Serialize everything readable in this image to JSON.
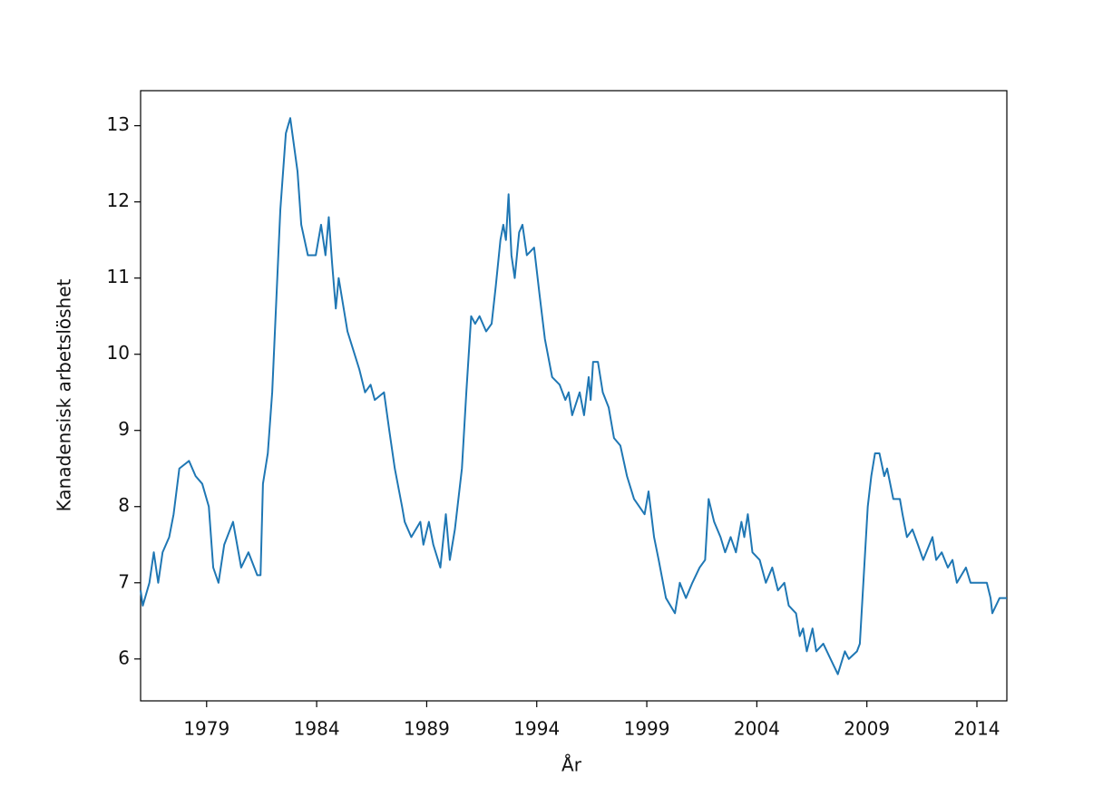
{
  "chart_data": {
    "type": "line",
    "x_label": "År",
    "y_label": "Kanadensisk arbetslöshet",
    "x": [
      1976.0,
      1976.1,
      1976.4,
      1976.6,
      1976.8,
      1977.0,
      1977.3,
      1977.5,
      1977.76,
      1978.2,
      1978.5,
      1978.8,
      1979.1,
      1979.3,
      1979.54,
      1979.8,
      1980.2,
      1980.57,
      1980.9,
      1981.3,
      1981.45,
      1981.56,
      1981.78,
      1981.98,
      1982.35,
      1982.6,
      1982.8,
      1983.13,
      1983.3,
      1983.6,
      1983.96,
      1984.2,
      1984.4,
      1984.55,
      1984.7,
      1984.87,
      1985.0,
      1985.4,
      1985.94,
      1986.2,
      1986.45,
      1986.64,
      1987.06,
      1987.3,
      1987.55,
      1987.88,
      1988.0,
      1988.3,
      1988.71,
      1988.85,
      1989.1,
      1989.3,
      1989.62,
      1989.87,
      1990.05,
      1990.28,
      1990.6,
      1990.8,
      1991.02,
      1991.2,
      1991.4,
      1991.7,
      1991.95,
      1992.14,
      1992.35,
      1992.48,
      1992.6,
      1992.72,
      1992.85,
      1993.0,
      1993.2,
      1993.35,
      1993.55,
      1993.88,
      1994.12,
      1994.37,
      1994.7,
      1995.04,
      1995.3,
      1995.45,
      1995.61,
      1995.95,
      1996.15,
      1996.36,
      1996.45,
      1996.56,
      1996.78,
      1997.0,
      1997.27,
      1997.51,
      1997.8,
      1998.1,
      1998.42,
      1998.9,
      1999.08,
      1999.33,
      1999.54,
      1999.87,
      2000.28,
      2000.5,
      2000.78,
      2001.07,
      2001.4,
      2001.65,
      2001.81,
      2002.06,
      2002.35,
      2002.56,
      2002.81,
      2003.05,
      2003.3,
      2003.43,
      2003.59,
      2003.8,
      2004.13,
      2004.41,
      2004.7,
      2004.96,
      2005.25,
      2005.45,
      2005.78,
      2005.95,
      2006.1,
      2006.27,
      2006.53,
      2006.7,
      2007.02,
      2007.35,
      2007.68,
      2008.0,
      2008.18,
      2008.55,
      2008.68,
      2008.84,
      2009.04,
      2009.2,
      2009.37,
      2009.57,
      2009.79,
      2009.92,
      2010.2,
      2010.5,
      2010.62,
      2010.82,
      2011.07,
      2011.32,
      2011.56,
      2011.98,
      2012.15,
      2012.4,
      2012.68,
      2012.89,
      2013.09,
      2013.5,
      2013.71,
      2014.45,
      2014.62,
      2014.7,
      2015.03,
      2015.36
    ],
    "values": [
      6.9,
      6.7,
      7.0,
      7.4,
      7.0,
      7.4,
      7.6,
      7.9,
      8.5,
      8.6,
      8.4,
      8.3,
      8.0,
      7.2,
      7.0,
      7.5,
      7.8,
      7.2,
      7.4,
      7.1,
      7.1,
      8.3,
      8.7,
      9.5,
      11.9,
      12.9,
      13.1,
      12.4,
      11.7,
      11.3,
      11.3,
      11.7,
      11.3,
      11.8,
      11.2,
      10.6,
      11.0,
      10.3,
      9.8,
      9.5,
      9.6,
      9.4,
      9.5,
      9.0,
      8.5,
      8.0,
      7.8,
      7.6,
      7.8,
      7.5,
      7.8,
      7.5,
      7.2,
      7.9,
      7.3,
      7.7,
      8.5,
      9.5,
      10.5,
      10.4,
      10.5,
      10.3,
      10.4,
      10.9,
      11.5,
      11.7,
      11.5,
      12.1,
      11.3,
      11.0,
      11.6,
      11.7,
      11.3,
      11.4,
      10.8,
      10.2,
      9.7,
      9.6,
      9.4,
      9.5,
      9.2,
      9.5,
      9.2,
      9.7,
      9.4,
      9.9,
      9.9,
      9.5,
      9.3,
      8.9,
      8.8,
      8.4,
      8.1,
      7.9,
      8.2,
      7.6,
      7.3,
      6.8,
      6.6,
      7.0,
      6.8,
      7.0,
      7.2,
      7.3,
      8.1,
      7.8,
      7.6,
      7.4,
      7.6,
      7.4,
      7.8,
      7.6,
      7.9,
      7.4,
      7.3,
      7.0,
      7.2,
      6.9,
      7.0,
      6.7,
      6.6,
      6.3,
      6.4,
      6.1,
      6.4,
      6.1,
      6.2,
      6.0,
      5.8,
      6.1,
      6.0,
      6.1,
      6.2,
      7.0,
      8.0,
      8.4,
      8.7,
      8.7,
      8.4,
      8.5,
      8.1,
      8.1,
      7.9,
      7.6,
      7.7,
      7.5,
      7.3,
      7.6,
      7.3,
      7.4,
      7.2,
      7.3,
      7.0,
      7.2,
      7.0,
      7.0,
      6.8,
      6.6,
      6.8,
      6.8
    ],
    "color": "#1f77b4",
    "xlim": [
      1976.0,
      2015.36
    ],
    "ylim": [
      5.45,
      13.46
    ],
    "xticks": [
      1979,
      1984,
      1989,
      1994,
      1999,
      2004,
      2009,
      2014
    ],
    "yticks": [
      6,
      7,
      8,
      9,
      10,
      11,
      12,
      13
    ],
    "grid": false
  }
}
